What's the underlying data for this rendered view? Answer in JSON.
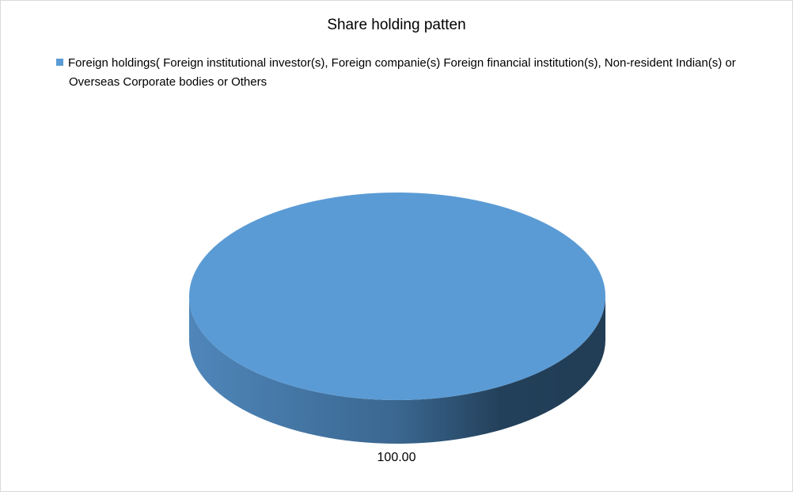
{
  "chart_data": {
    "type": "pie",
    "title": "Share holding patten",
    "categories": [
      "Foreign holdings( Foreign institutional investor(s), Foreign companie(s) Foreign financial institution(s), Non-resident Indian(s) or Overseas Corporate bodies or Others"
    ],
    "values": [
      100.0
    ],
    "data_labels": [
      "100.00"
    ],
    "colors": [
      "#5b9bd5"
    ],
    "legend_position": "top",
    "style": "3d"
  }
}
